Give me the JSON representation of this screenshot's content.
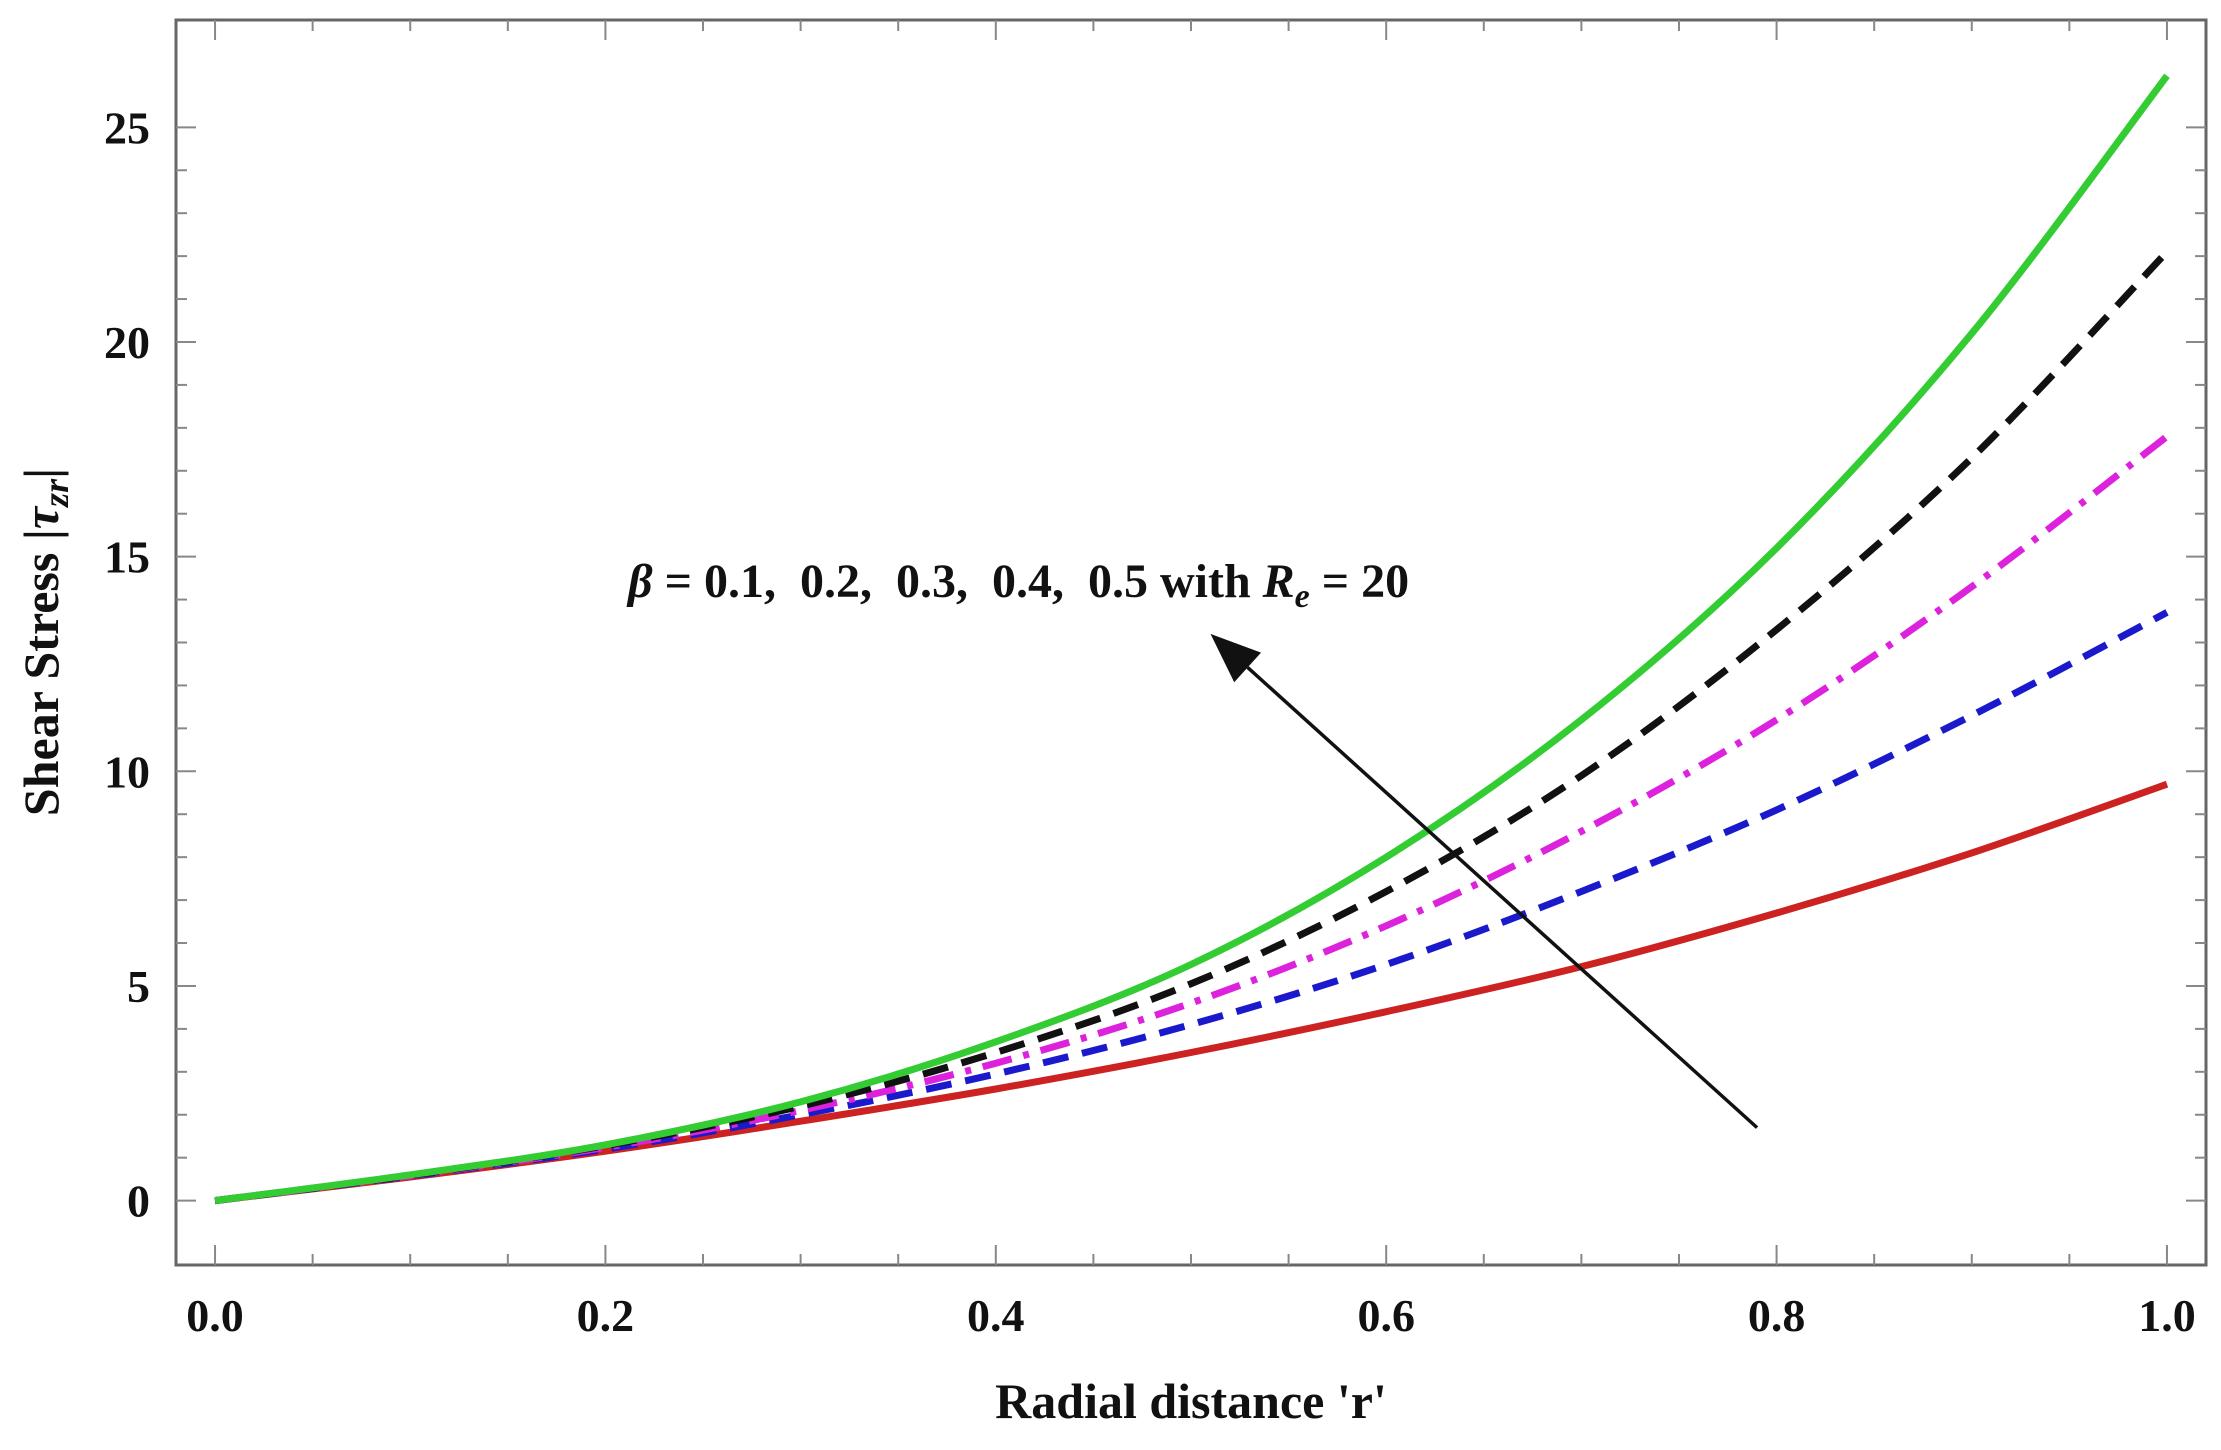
{
  "chart_data": {
    "type": "line",
    "title": "",
    "xlabel": "Radial distance 'r'",
    "ylabel": "Shear Stress",
    "ylabel_symbol": "τ",
    "ylabel_subscript": "zr",
    "xlim": [
      -0.02,
      1.02
    ],
    "ylim": [
      -1.5,
      27.5
    ],
    "xticks": [
      0.0,
      0.2,
      0.4,
      0.6,
      0.8,
      1.0
    ],
    "xtick_labels": [
      "0.0",
      "0.2",
      "0.4",
      "0.6",
      "0.8",
      "1.0"
    ],
    "yticks": [
      0,
      5,
      10,
      15,
      20,
      25
    ],
    "ytick_labels": [
      "0",
      "5",
      "10",
      "15",
      "20",
      "25"
    ],
    "grid": false,
    "x": [
      0.0,
      0.1,
      0.2,
      0.3,
      0.4,
      0.5,
      0.6,
      0.7,
      0.8,
      0.9,
      1.0
    ],
    "series": [
      {
        "name": "β = 0.1",
        "color": "#cc2222",
        "style": "solid",
        "values": [
          0.0,
          0.55,
          1.15,
          1.85,
          2.6,
          3.45,
          4.4,
          5.45,
          6.7,
          8.1,
          9.7
        ]
      },
      {
        "name": "β = 0.2",
        "color": "#1a1acc",
        "style": "dashed",
        "values": [
          0.0,
          0.57,
          1.2,
          2.0,
          2.95,
          4.1,
          5.5,
          7.2,
          9.1,
          11.3,
          13.7
        ]
      },
      {
        "name": "β = 0.3",
        "color": "#dd22dd",
        "style": "dashdot",
        "values": [
          0.0,
          0.58,
          1.24,
          2.1,
          3.2,
          4.6,
          6.4,
          8.6,
          11.2,
          14.3,
          17.8
        ]
      },
      {
        "name": "β = 0.4",
        "color": "#111111",
        "style": "dashed",
        "values": [
          0.0,
          0.59,
          1.28,
          2.2,
          3.45,
          5.05,
          7.2,
          9.9,
          13.3,
          17.3,
          22.1
        ]
      },
      {
        "name": "β = 0.5",
        "color": "#33cc33",
        "style": "solid",
        "values": [
          0.0,
          0.6,
          1.3,
          2.3,
          3.7,
          5.5,
          8.0,
          11.2,
          15.2,
          20.2,
          26.2
        ]
      }
    ],
    "annotation": {
      "beta_symbol": "β",
      "equals": " = ",
      "values_text": "0.1,  0.2,  0.3,  0.4,  0.5",
      "with_text": " with ",
      "re_symbol": "R",
      "re_subscript": "e",
      "re_value": " = 20",
      "arrow_from": [
        0.79,
        1.7
      ],
      "arrow_to": [
        0.51,
        13.2
      ]
    }
  }
}
